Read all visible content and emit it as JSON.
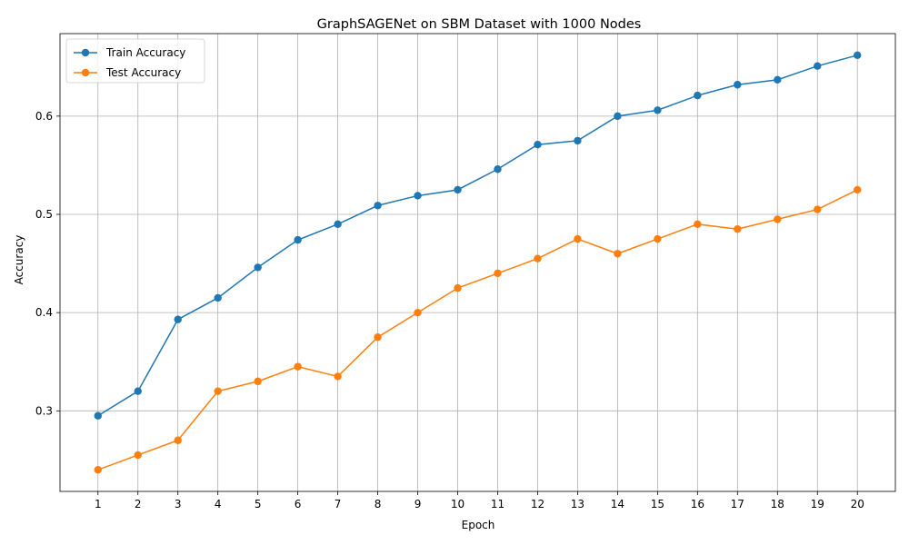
{
  "chart_data": {
    "type": "line",
    "title": "GraphSAGENet on SBM Dataset with 1000 Nodes",
    "xlabel": "Epoch",
    "ylabel": "Accuracy",
    "x": [
      1,
      2,
      3,
      4,
      5,
      6,
      7,
      8,
      9,
      10,
      11,
      12,
      13,
      14,
      15,
      16,
      17,
      18,
      19,
      20
    ],
    "xtick_labels": [
      "1",
      "2",
      "3",
      "4",
      "5",
      "6",
      "7",
      "8",
      "9",
      "10",
      "11",
      "12",
      "13",
      "14",
      "15",
      "16",
      "17",
      "18",
      "19",
      "20"
    ],
    "ylim": [
      0.218,
      0.684
    ],
    "xlim": [
      0.05,
      20.95
    ],
    "yticks": [
      0.3,
      0.4,
      0.5,
      0.6
    ],
    "ytick_labels": [
      "0.3",
      "0.4",
      "0.5",
      "0.6"
    ],
    "grid": true,
    "legend_position": "upper left",
    "series": [
      {
        "name": "Train Accuracy",
        "color": "#1f77b4",
        "marker": "circle",
        "values": [
          0.295,
          0.32,
          0.393,
          0.415,
          0.446,
          0.474,
          0.49,
          0.509,
          0.519,
          0.525,
          0.546,
          0.571,
          0.575,
          0.6,
          0.606,
          0.621,
          0.632,
          0.637,
          0.651,
          0.662
        ]
      },
      {
        "name": "Test Accuracy",
        "color": "#ff7f0e",
        "marker": "circle",
        "values": [
          0.24,
          0.255,
          0.27,
          0.32,
          0.33,
          0.345,
          0.335,
          0.375,
          0.4,
          0.425,
          0.44,
          0.455,
          0.475,
          0.46,
          0.475,
          0.49,
          0.485,
          0.495,
          0.505,
          0.525
        ]
      }
    ]
  }
}
